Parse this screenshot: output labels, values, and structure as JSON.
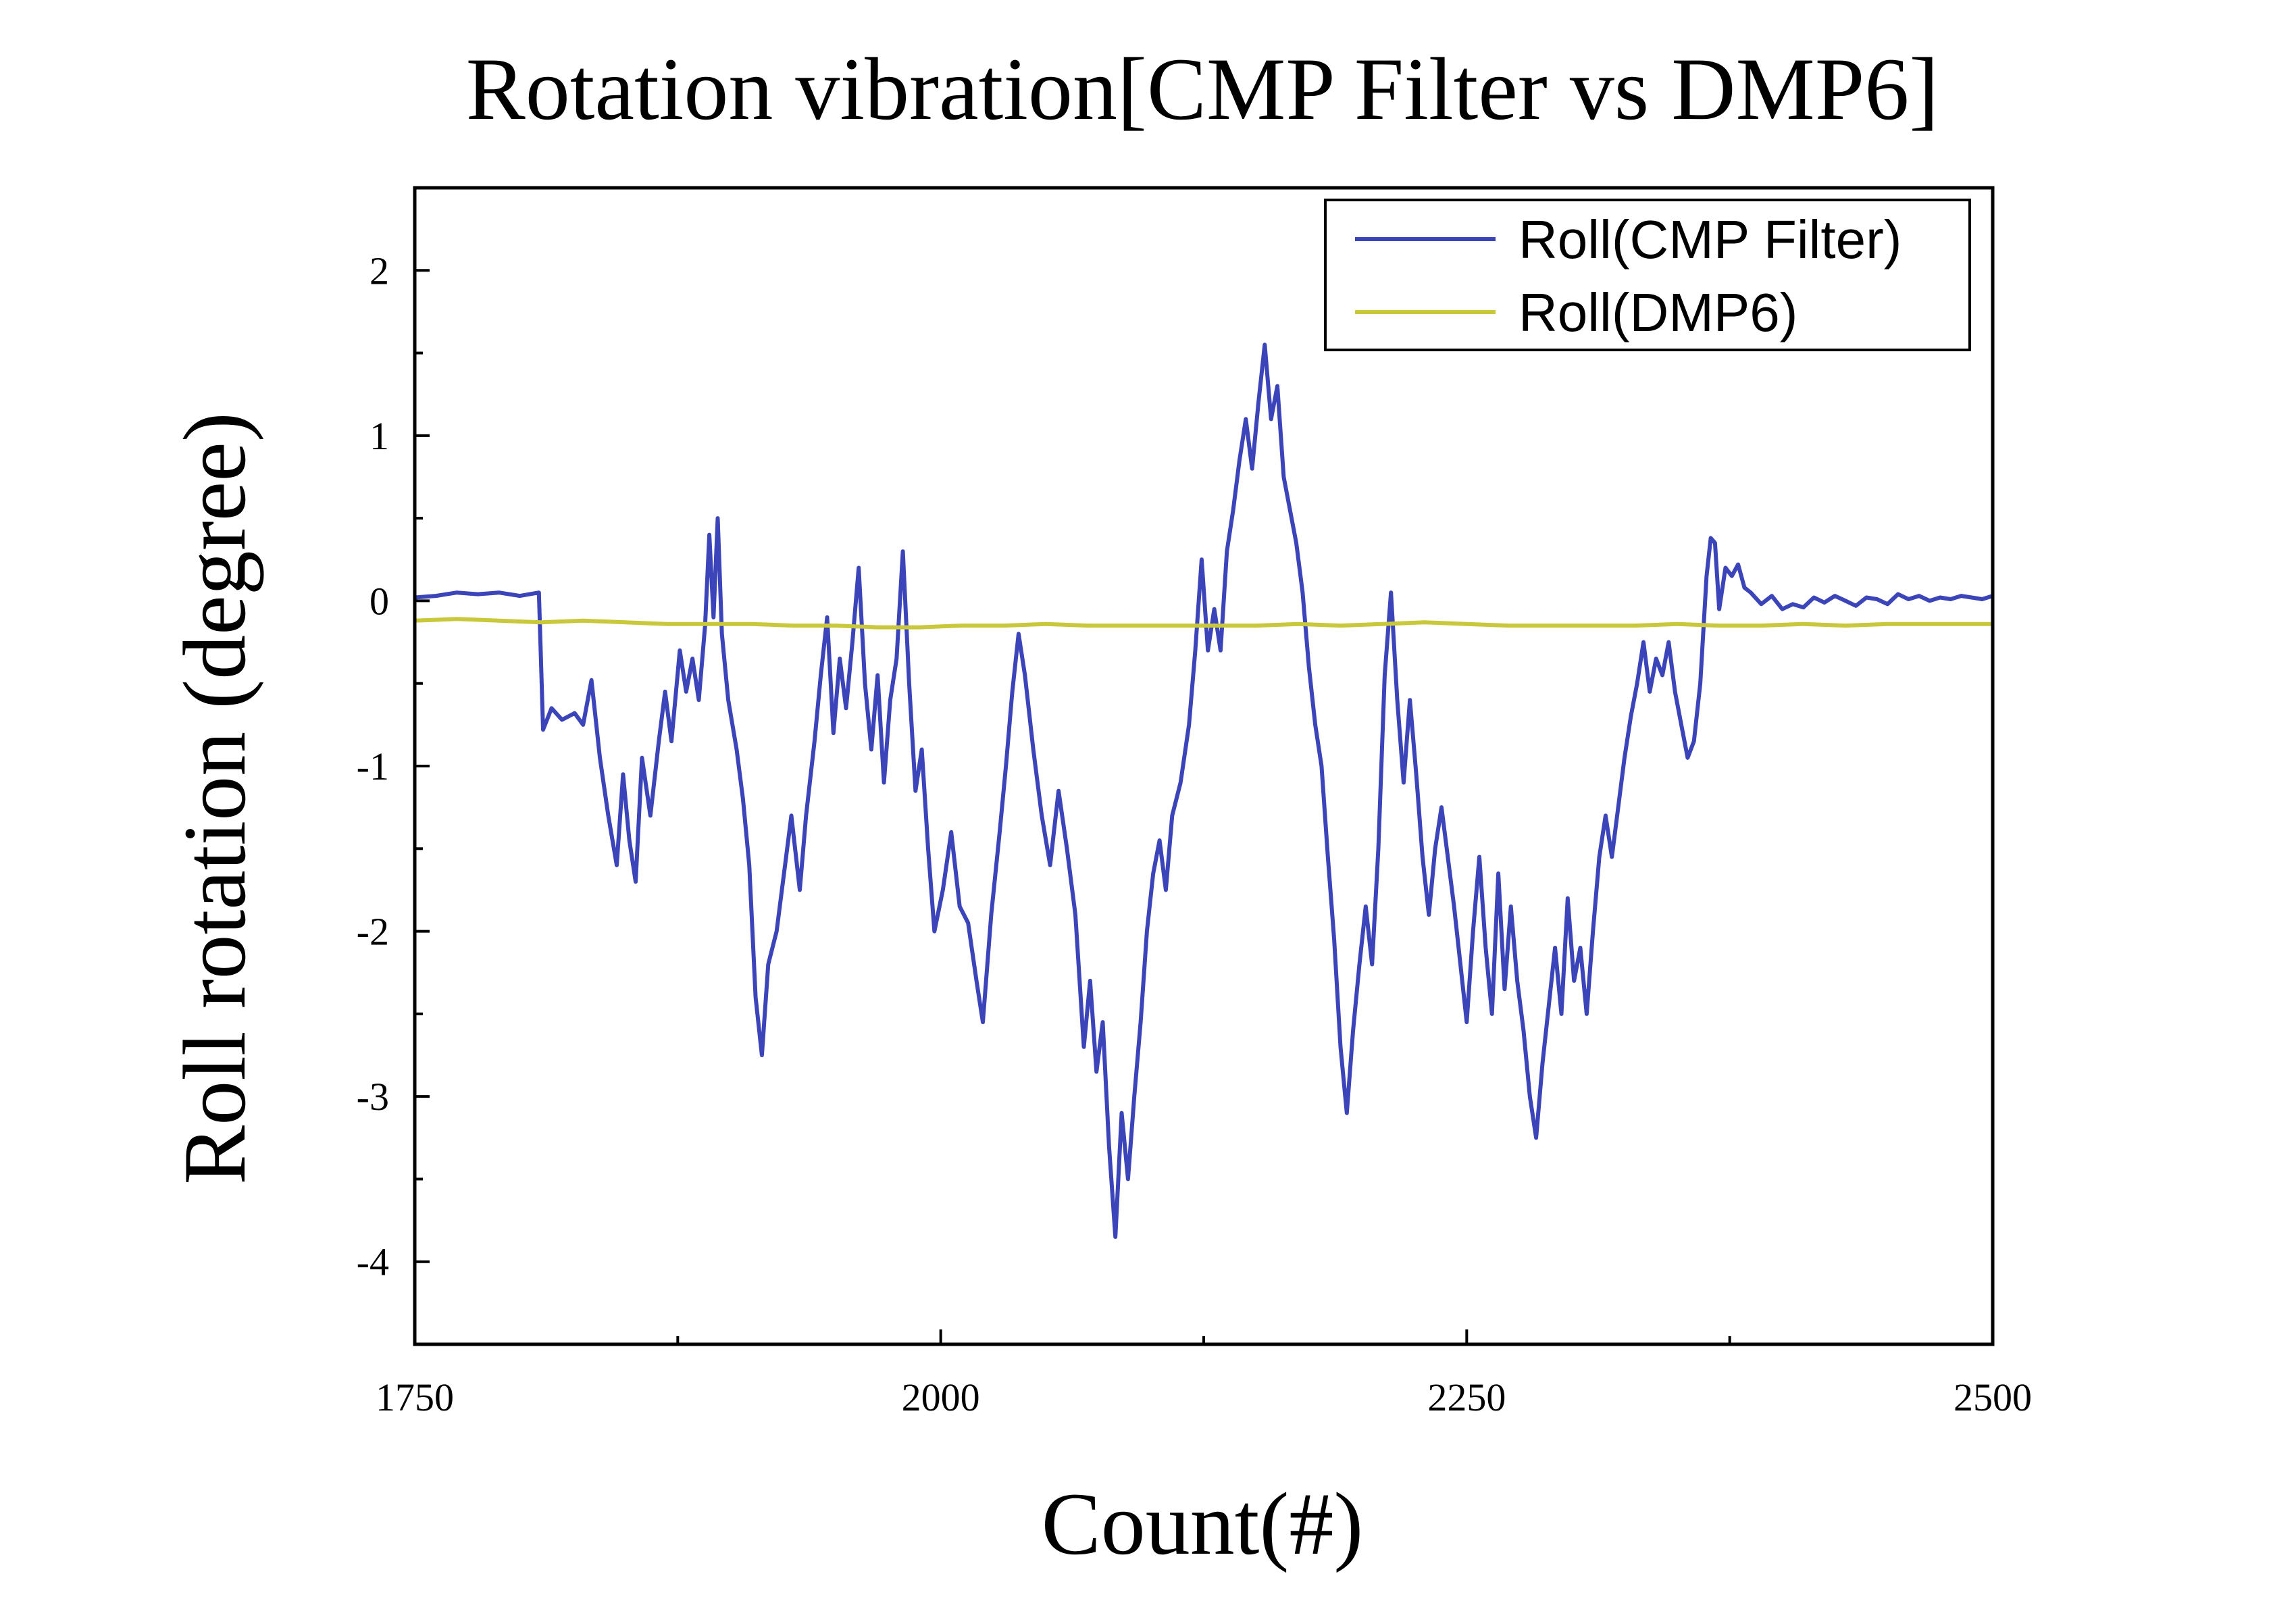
{
  "chart_data": {
    "type": "line",
    "title": "Rotation vibration[CMP Filter vs DMP6]",
    "xlabel": "Count(#)",
    "ylabel": "Roll rotation (degree)",
    "xlim": [
      1750,
      2500
    ],
    "ylim": [
      -4.5,
      2.5
    ],
    "x_ticks": [
      1750,
      2000,
      2250,
      2500
    ],
    "x_tick_labels": [
      "1750",
      "2000",
      "2250",
      "2500"
    ],
    "y_ticks": [
      2,
      1,
      0,
      -1,
      -2,
      -3,
      -4
    ],
    "y_tick_labels": [
      "2",
      "1",
      "0",
      "-1",
      "-2",
      "-3",
      "-4"
    ],
    "grid": false,
    "legend_position": "top-right",
    "series": [
      {
        "name": "Roll(CMP Filter)",
        "color": "#3b44b8",
        "points": [
          [
            1750,
            0.02
          ],
          [
            1760,
            0.03
          ],
          [
            1770,
            0.05
          ],
          [
            1780,
            0.04
          ],
          [
            1790,
            0.05
          ],
          [
            1800,
            0.03
          ],
          [
            1809,
            0.05
          ],
          [
            1811,
            -0.78
          ],
          [
            1815,
            -0.65
          ],
          [
            1820,
            -0.72
          ],
          [
            1826,
            -0.68
          ],
          [
            1830,
            -0.75
          ],
          [
            1834,
            -0.48
          ],
          [
            1838,
            -0.95
          ],
          [
            1842,
            -1.3
          ],
          [
            1846,
            -1.6
          ],
          [
            1849,
            -1.05
          ],
          [
            1852,
            -1.45
          ],
          [
            1855,
            -1.7
          ],
          [
            1858,
            -0.95
          ],
          [
            1862,
            -1.3
          ],
          [
            1866,
            -0.85
          ],
          [
            1869,
            -0.55
          ],
          [
            1872,
            -0.85
          ],
          [
            1876,
            -0.3
          ],
          [
            1879,
            -0.55
          ],
          [
            1882,
            -0.35
          ],
          [
            1885,
            -0.6
          ],
          [
            1888,
            -0.15
          ],
          [
            1890,
            0.4
          ],
          [
            1892,
            -0.1
          ],
          [
            1894,
            0.5
          ],
          [
            1896,
            -0.2
          ],
          [
            1899,
            -0.6
          ],
          [
            1903,
            -0.9
          ],
          [
            1906,
            -1.2
          ],
          [
            1909,
            -1.6
          ],
          [
            1912,
            -2.4
          ],
          [
            1915,
            -2.75
          ],
          [
            1918,
            -2.2
          ],
          [
            1922,
            -2.0
          ],
          [
            1926,
            -1.6
          ],
          [
            1929,
            -1.3
          ],
          [
            1933,
            -1.75
          ],
          [
            1936,
            -1.3
          ],
          [
            1940,
            -0.85
          ],
          [
            1943,
            -0.45
          ],
          [
            1946,
            -0.1
          ],
          [
            1949,
            -0.8
          ],
          [
            1952,
            -0.35
          ],
          [
            1955,
            -0.65
          ],
          [
            1958,
            -0.25
          ],
          [
            1961,
            0.2
          ],
          [
            1964,
            -0.5
          ],
          [
            1967,
            -0.9
          ],
          [
            1970,
            -0.45
          ],
          [
            1973,
            -1.1
          ],
          [
            1976,
            -0.6
          ],
          [
            1979,
            -0.35
          ],
          [
            1982,
            0.3
          ],
          [
            1985,
            -0.5
          ],
          [
            1988,
            -1.15
          ],
          [
            1991,
            -0.9
          ],
          [
            1994,
            -1.5
          ],
          [
            1997,
            -2.0
          ],
          [
            2001,
            -1.75
          ],
          [
            2005,
            -1.4
          ],
          [
            2009,
            -1.85
          ],
          [
            2013,
            -1.95
          ],
          [
            2017,
            -2.3
          ],
          [
            2020,
            -2.55
          ],
          [
            2024,
            -1.9
          ],
          [
            2028,
            -1.4
          ],
          [
            2031,
            -1.0
          ],
          [
            2034,
            -0.55
          ],
          [
            2037,
            -0.2
          ],
          [
            2040,
            -0.45
          ],
          [
            2044,
            -0.9
          ],
          [
            2048,
            -1.3
          ],
          [
            2052,
            -1.6
          ],
          [
            2056,
            -1.15
          ],
          [
            2060,
            -1.5
          ],
          [
            2064,
            -1.9
          ],
          [
            2068,
            -2.7
          ],
          [
            2071,
            -2.3
          ],
          [
            2074,
            -2.85
          ],
          [
            2077,
            -2.55
          ],
          [
            2080,
            -3.3
          ],
          [
            2083,
            -3.85
          ],
          [
            2086,
            -3.1
          ],
          [
            2089,
            -3.5
          ],
          [
            2092,
            -3.0
          ],
          [
            2095,
            -2.55
          ],
          [
            2098,
            -2.0
          ],
          [
            2101,
            -1.65
          ],
          [
            2104,
            -1.45
          ],
          [
            2107,
            -1.75
          ],
          [
            2110,
            -1.3
          ],
          [
            2114,
            -1.1
          ],
          [
            2118,
            -0.75
          ],
          [
            2121,
            -0.3
          ],
          [
            2124,
            0.25
          ],
          [
            2127,
            -0.3
          ],
          [
            2130,
            -0.05
          ],
          [
            2133,
            -0.3
          ],
          [
            2136,
            0.3
          ],
          [
            2139,
            0.55
          ],
          [
            2142,
            0.85
          ],
          [
            2145,
            1.1
          ],
          [
            2148,
            0.8
          ],
          [
            2151,
            1.2
          ],
          [
            2154,
            1.55
          ],
          [
            2157,
            1.1
          ],
          [
            2160,
            1.3
          ],
          [
            2163,
            0.75
          ],
          [
            2166,
            0.55
          ],
          [
            2169,
            0.35
          ],
          [
            2172,
            0.05
          ],
          [
            2175,
            -0.4
          ],
          [
            2178,
            -0.75
          ],
          [
            2181,
            -1.0
          ],
          [
            2184,
            -1.55
          ],
          [
            2187,
            -2.05
          ],
          [
            2190,
            -2.7
          ],
          [
            2193,
            -3.1
          ],
          [
            2196,
            -2.6
          ],
          [
            2199,
            -2.2
          ],
          [
            2202,
            -1.85
          ],
          [
            2205,
            -2.2
          ],
          [
            2208,
            -1.5
          ],
          [
            2211,
            -0.45
          ],
          [
            2214,
            0.05
          ],
          [
            2217,
            -0.6
          ],
          [
            2220,
            -1.1
          ],
          [
            2223,
            -0.6
          ],
          [
            2226,
            -1.05
          ],
          [
            2229,
            -1.55
          ],
          [
            2232,
            -1.9
          ],
          [
            2235,
            -1.5
          ],
          [
            2238,
            -1.25
          ],
          [
            2241,
            -1.55
          ],
          [
            2244,
            -1.85
          ],
          [
            2247,
            -2.2
          ],
          [
            2250,
            -2.55
          ],
          [
            2253,
            -2.0
          ],
          [
            2256,
            -1.55
          ],
          [
            2259,
            -2.1
          ],
          [
            2262,
            -2.5
          ],
          [
            2265,
            -1.65
          ],
          [
            2268,
            -2.35
          ],
          [
            2271,
            -1.85
          ],
          [
            2274,
            -2.3
          ],
          [
            2277,
            -2.6
          ],
          [
            2280,
            -3.0
          ],
          [
            2283,
            -3.25
          ],
          [
            2286,
            -2.8
          ],
          [
            2289,
            -2.45
          ],
          [
            2292,
            -2.1
          ],
          [
            2295,
            -2.5
          ],
          [
            2298,
            -1.8
          ],
          [
            2301,
            -2.3
          ],
          [
            2304,
            -2.1
          ],
          [
            2307,
            -2.5
          ],
          [
            2310,
            -2.0
          ],
          [
            2313,
            -1.55
          ],
          [
            2316,
            -1.3
          ],
          [
            2319,
            -1.55
          ],
          [
            2322,
            -1.25
          ],
          [
            2325,
            -0.95
          ],
          [
            2328,
            -0.7
          ],
          [
            2331,
            -0.5
          ],
          [
            2334,
            -0.25
          ],
          [
            2337,
            -0.55
          ],
          [
            2340,
            -0.35
          ],
          [
            2343,
            -0.45
          ],
          [
            2346,
            -0.25
          ],
          [
            2349,
            -0.55
          ],
          [
            2352,
            -0.75
          ],
          [
            2355,
            -0.95
          ],
          [
            2358,
            -0.85
          ],
          [
            2361,
            -0.5
          ],
          [
            2364,
            0.15
          ],
          [
            2366,
            0.38
          ],
          [
            2368,
            0.35
          ],
          [
            2370,
            -0.05
          ],
          [
            2373,
            0.2
          ],
          [
            2376,
            0.15
          ],
          [
            2379,
            0.22
          ],
          [
            2382,
            0.08
          ],
          [
            2385,
            0.05
          ],
          [
            2390,
            -0.02
          ],
          [
            2395,
            0.03
          ],
          [
            2400,
            -0.05
          ],
          [
            2405,
            -0.02
          ],
          [
            2410,
            -0.04
          ],
          [
            2415,
            0.02
          ],
          [
            2420,
            -0.01
          ],
          [
            2425,
            0.03
          ],
          [
            2430,
            0.0
          ],
          [
            2435,
            -0.03
          ],
          [
            2440,
            0.02
          ],
          [
            2445,
            0.01
          ],
          [
            2450,
            -0.02
          ],
          [
            2455,
            0.04
          ],
          [
            2460,
            0.01
          ],
          [
            2465,
            0.03
          ],
          [
            2470,
            0.0
          ],
          [
            2475,
            0.02
          ],
          [
            2480,
            0.01
          ],
          [
            2485,
            0.03
          ],
          [
            2490,
            0.02
          ],
          [
            2495,
            0.01
          ],
          [
            2500,
            0.03
          ]
        ]
      },
      {
        "name": "Roll(DMP6)",
        "color": "#c8c83a",
        "points": [
          [
            1750,
            -0.12
          ],
          [
            1770,
            -0.11
          ],
          [
            1790,
            -0.12
          ],
          [
            1810,
            -0.13
          ],
          [
            1830,
            -0.12
          ],
          [
            1850,
            -0.13
          ],
          [
            1870,
            -0.14
          ],
          [
            1890,
            -0.14
          ],
          [
            1910,
            -0.14
          ],
          [
            1930,
            -0.15
          ],
          [
            1950,
            -0.15
          ],
          [
            1970,
            -0.16
          ],
          [
            1990,
            -0.16
          ],
          [
            2010,
            -0.15
          ],
          [
            2030,
            -0.15
          ],
          [
            2050,
            -0.14
          ],
          [
            2070,
            -0.15
          ],
          [
            2090,
            -0.15
          ],
          [
            2110,
            -0.15
          ],
          [
            2130,
            -0.15
          ],
          [
            2150,
            -0.15
          ],
          [
            2170,
            -0.14
          ],
          [
            2190,
            -0.15
          ],
          [
            2210,
            -0.14
          ],
          [
            2230,
            -0.13
          ],
          [
            2250,
            -0.14
          ],
          [
            2270,
            -0.15
          ],
          [
            2290,
            -0.15
          ],
          [
            2310,
            -0.15
          ],
          [
            2330,
            -0.15
          ],
          [
            2350,
            -0.14
          ],
          [
            2370,
            -0.15
          ],
          [
            2390,
            -0.15
          ],
          [
            2410,
            -0.14
          ],
          [
            2430,
            -0.15
          ],
          [
            2450,
            -0.14
          ],
          [
            2470,
            -0.14
          ],
          [
            2490,
            -0.14
          ],
          [
            2500,
            -0.14
          ]
        ]
      }
    ]
  }
}
